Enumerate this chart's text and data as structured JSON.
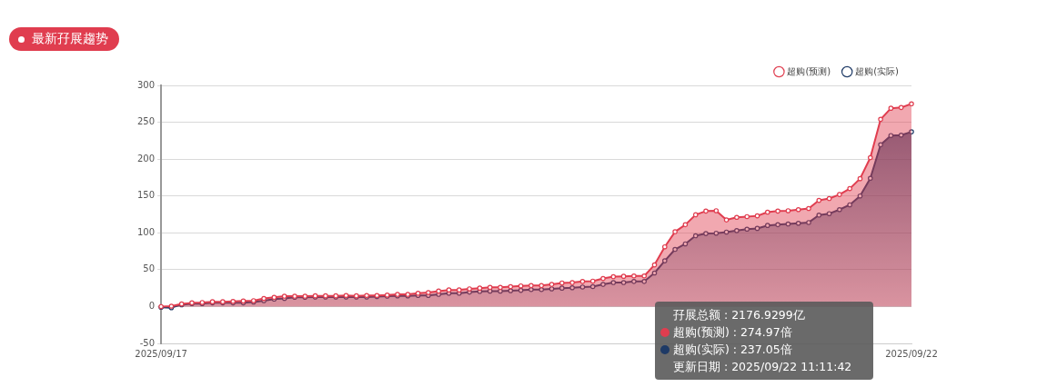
{
  "chart_data": {
    "type": "area",
    "title": "最新孖展趨势",
    "categories": [
      "2025/09/17",
      null,
      null,
      null,
      null,
      null,
      null,
      null,
      null,
      null,
      null,
      null,
      null,
      null,
      null,
      null,
      null,
      null,
      null,
      null,
      null,
      null,
      null,
      null,
      null,
      null,
      null,
      null,
      null,
      null,
      null,
      null,
      null,
      null,
      null,
      null,
      null,
      null,
      null,
      null,
      null,
      null,
      null,
      null,
      null,
      null,
      null,
      null,
      null,
      null,
      null,
      null,
      null,
      null,
      null,
      null,
      null,
      null,
      null,
      null,
      null,
      null,
      null,
      null,
      null,
      null,
      null,
      null,
      null,
      null,
      null,
      null,
      null,
      "2025/09/22"
    ],
    "series": [
      {
        "name": "超购(预测)",
        "color": "#e03d4f",
        "values": [
          0,
          0.5,
          3.5,
          5,
          5.5,
          6.5,
          6.5,
          7,
          7.5,
          8,
          11,
          12.5,
          14,
          14,
          14,
          14.5,
          14.5,
          14.5,
          15,
          14.5,
          15,
          15,
          15.5,
          16.5,
          16.5,
          18,
          19,
          21,
          22.5,
          22.5,
          24,
          25,
          26,
          26,
          27,
          28,
          28.5,
          28.5,
          30,
          32,
          32.5,
          34,
          34.5,
          38,
          40.5,
          41,
          41.5,
          41.5,
          56.5,
          81,
          101.5,
          111,
          124.5,
          129.5,
          130,
          117.5,
          121,
          122,
          123,
          128,
          129.5,
          130,
          131.5,
          133,
          144,
          146.5,
          152,
          160,
          173.5,
          202,
          254,
          269,
          270,
          274.97
        ]
      },
      {
        "name": "超购(实际)",
        "color": "#1e3a66",
        "values": [
          -1,
          -1.5,
          2.5,
          4,
          4,
          5,
          5,
          5,
          5,
          6,
          8,
          10,
          11,
          12.5,
          12.5,
          13,
          13,
          13,
          13,
          13,
          13,
          13.5,
          14,
          14.5,
          14.5,
          15,
          15,
          16.5,
          18,
          18,
          19.5,
          20.5,
          21,
          21,
          21.5,
          22,
          23,
          23,
          24,
          25,
          25.5,
          26.5,
          27,
          30,
          32.5,
          32.5,
          34,
          34,
          45.5,
          62,
          77.5,
          85,
          96,
          99,
          99.5,
          101,
          103,
          105,
          106,
          110,
          111,
          112,
          113,
          114,
          124,
          126,
          131.5,
          138,
          150,
          174,
          219.5,
          232,
          232.5,
          237.05
        ]
      }
    ],
    "ylim": [
      -50,
      300
    ],
    "yticks": [
      -50,
      0,
      50,
      100,
      150,
      200,
      250,
      300
    ],
    "grid": "y",
    "legend": "top right",
    "marker": "circle",
    "annotations": [
      "孖展总额 : 2176.9299亿",
      "超购(预测) : 274.97倍",
      "超购(实际) : 237.05倍",
      "更新日期 : 2025/09/22 11:11:42"
    ]
  }
}
